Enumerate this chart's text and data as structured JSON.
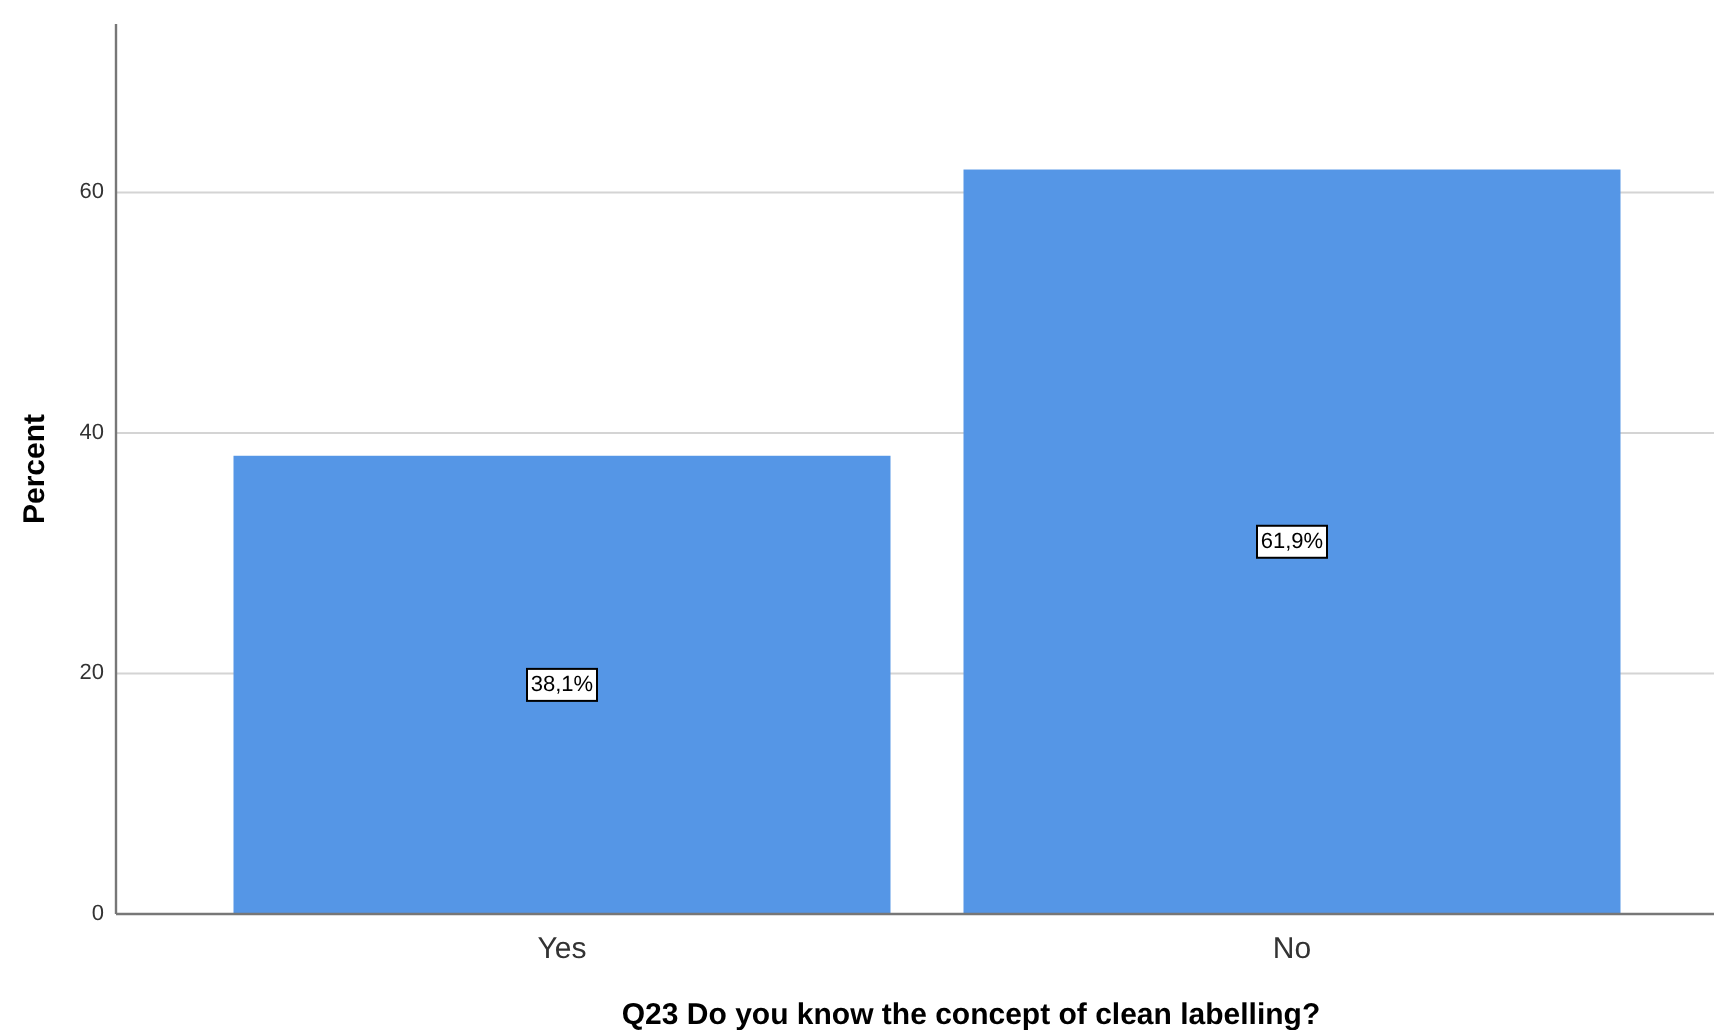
{
  "chart_data": {
    "type": "bar",
    "xlabel": "Q23 Do you know the concept of clean labelling?",
    "ylabel": "Percent",
    "categories": [
      "Yes",
      "No"
    ],
    "values": [
      38.1,
      61.9
    ],
    "color": "#5596e6",
    "value_labels": [
      "38,1%",
      "61,9%"
    ],
    "ylim": [
      0,
      74
    ],
    "yticks": [
      0,
      20,
      40,
      60
    ],
    "grid": "y"
  }
}
